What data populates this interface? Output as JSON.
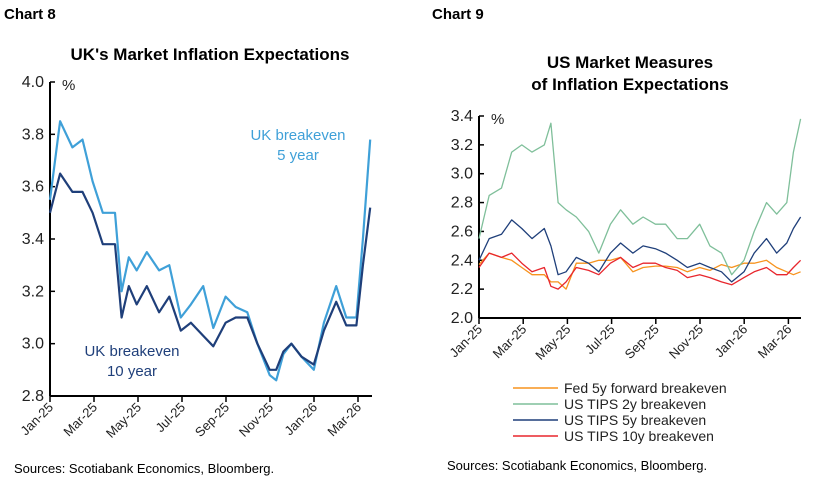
{
  "chart_data": [
    {
      "type": "line",
      "label": "Chart 8",
      "title": "UK's Market Inflation Expectations",
      "ylabel": "%",
      "ylim": [
        2.8,
        4.0
      ],
      "yticks": [
        "2.8",
        "3.0",
        "3.2",
        "3.4",
        "3.6",
        "3.8",
        "4.0"
      ],
      "xticks": [
        "Jan-25",
        "Mar-25",
        "May-25",
        "Jul-25",
        "Sep-25",
        "Nov-25",
        "Jan-26",
        "Mar-26"
      ],
      "x": [
        "2025-01-01",
        "2025-01-15",
        "2025-02-01",
        "2025-02-15",
        "2025-03-01",
        "2025-03-15",
        "2025-04-01",
        "2025-04-10",
        "2025-04-20",
        "2025-05-01",
        "2025-05-15",
        "2025-06-01",
        "2025-06-15",
        "2025-07-01",
        "2025-07-15",
        "2025-08-01",
        "2025-08-15",
        "2025-09-01",
        "2025-09-15",
        "2025-10-01",
        "2025-10-15",
        "2025-11-01",
        "2025-11-10",
        "2025-11-20",
        "2025-12-01",
        "2025-12-15",
        "2026-01-01",
        "2026-01-15",
        "2026-02-01",
        "2026-02-15",
        "2026-03-01",
        "2026-03-10",
        "2026-03-20"
      ],
      "series": [
        {
          "name": "UK breakeven 5 year",
          "color": "#3fa0d8",
          "values": [
            3.55,
            3.85,
            3.75,
            3.78,
            3.62,
            3.5,
            3.5,
            3.2,
            3.33,
            3.28,
            3.35,
            3.28,
            3.3,
            3.1,
            3.15,
            3.22,
            3.06,
            3.18,
            3.14,
            3.12,
            3.0,
            2.88,
            2.86,
            2.96,
            3.0,
            2.95,
            2.9,
            3.08,
            3.22,
            3.1,
            3.1,
            3.4,
            3.78
          ]
        },
        {
          "name": "UK breakeven 10 year",
          "color": "#1f3f7a",
          "values": [
            3.5,
            3.65,
            3.58,
            3.58,
            3.5,
            3.38,
            3.38,
            3.1,
            3.22,
            3.15,
            3.22,
            3.12,
            3.18,
            3.05,
            3.08,
            3.03,
            2.99,
            3.08,
            3.1,
            3.1,
            3.0,
            2.9,
            2.9,
            2.97,
            3.0,
            2.95,
            2.92,
            3.05,
            3.16,
            3.07,
            3.07,
            3.3,
            3.52
          ]
        }
      ],
      "annotations": [
        {
          "line1": "UK breakeven",
          "line2": "5 year"
        },
        {
          "line1": "UK breakeven",
          "line2": "10 year"
        }
      ],
      "source": "Sources: Scotiabank Economics, Bloomberg."
    },
    {
      "type": "line",
      "label": "Chart 9",
      "title": "US Market Measures of Inflation Expectations",
      "title_lines": [
        "US Market Measures",
        "of Inflation Expectations"
      ],
      "ylabel": "%",
      "ylim": [
        2.0,
        3.4
      ],
      "yticks": [
        "2.0",
        "2.2",
        "2.4",
        "2.6",
        "2.8",
        "3.0",
        "3.2",
        "3.4"
      ],
      "xticks": [
        "Jan-25",
        "Mar-25",
        "May-25",
        "Jul-25",
        "Sep-25",
        "Nov-25",
        "Jan-26",
        "Mar-26"
      ],
      "x": [
        "2025-01-01",
        "2025-01-15",
        "2025-02-01",
        "2025-02-15",
        "2025-03-01",
        "2025-03-15",
        "2025-04-01",
        "2025-04-10",
        "2025-04-20",
        "2025-05-01",
        "2025-05-15",
        "2025-06-01",
        "2025-06-15",
        "2025-07-01",
        "2025-07-15",
        "2025-08-01",
        "2025-08-15",
        "2025-09-01",
        "2025-09-15",
        "2025-10-01",
        "2025-10-15",
        "2025-11-01",
        "2025-11-15",
        "2025-12-01",
        "2025-12-15",
        "2026-01-01",
        "2026-01-15",
        "2026-02-01",
        "2026-02-15",
        "2026-03-01",
        "2026-03-10",
        "2026-03-20"
      ],
      "series": [
        {
          "name": "Fed 5y forward breakeven",
          "color": "#f7931e",
          "values": [
            2.37,
            2.45,
            2.42,
            2.4,
            2.35,
            2.3,
            2.3,
            2.25,
            2.25,
            2.2,
            2.38,
            2.38,
            2.4,
            2.4,
            2.42,
            2.32,
            2.35,
            2.36,
            2.36,
            2.35,
            2.32,
            2.35,
            2.33,
            2.37,
            2.35,
            2.38,
            2.38,
            2.4,
            2.35,
            2.32,
            2.3,
            2.32
          ]
        },
        {
          "name": "US TIPS 2y breakeven",
          "color": "#7fbf9a",
          "values": [
            2.55,
            2.85,
            2.9,
            3.15,
            3.2,
            3.15,
            3.2,
            3.35,
            2.8,
            2.75,
            2.7,
            2.6,
            2.45,
            2.65,
            2.75,
            2.65,
            2.7,
            2.65,
            2.65,
            2.55,
            2.55,
            2.65,
            2.5,
            2.45,
            2.3,
            2.4,
            2.6,
            2.8,
            2.72,
            2.8,
            3.15,
            3.38
          ]
        },
        {
          "name": "US TIPS 5y breakeven",
          "color": "#1f3f7a",
          "values": [
            2.4,
            2.55,
            2.58,
            2.68,
            2.62,
            2.55,
            2.62,
            2.5,
            2.3,
            2.32,
            2.42,
            2.38,
            2.32,
            2.45,
            2.52,
            2.45,
            2.5,
            2.48,
            2.45,
            2.4,
            2.35,
            2.38,
            2.35,
            2.32,
            2.25,
            2.32,
            2.45,
            2.55,
            2.45,
            2.52,
            2.62,
            2.7
          ]
        },
        {
          "name": "US TIPS 10y breakeven",
          "color": "#e8262d",
          "values": [
            2.35,
            2.45,
            2.42,
            2.45,
            2.38,
            2.32,
            2.35,
            2.22,
            2.2,
            2.25,
            2.35,
            2.33,
            2.3,
            2.38,
            2.42,
            2.35,
            2.38,
            2.38,
            2.35,
            2.33,
            2.28,
            2.3,
            2.28,
            2.25,
            2.23,
            2.28,
            2.32,
            2.35,
            2.3,
            2.3,
            2.35,
            2.4
          ]
        }
      ],
      "legend": "bottom",
      "source": "Sources: Scotiabank Economics, Bloomberg."
    }
  ]
}
